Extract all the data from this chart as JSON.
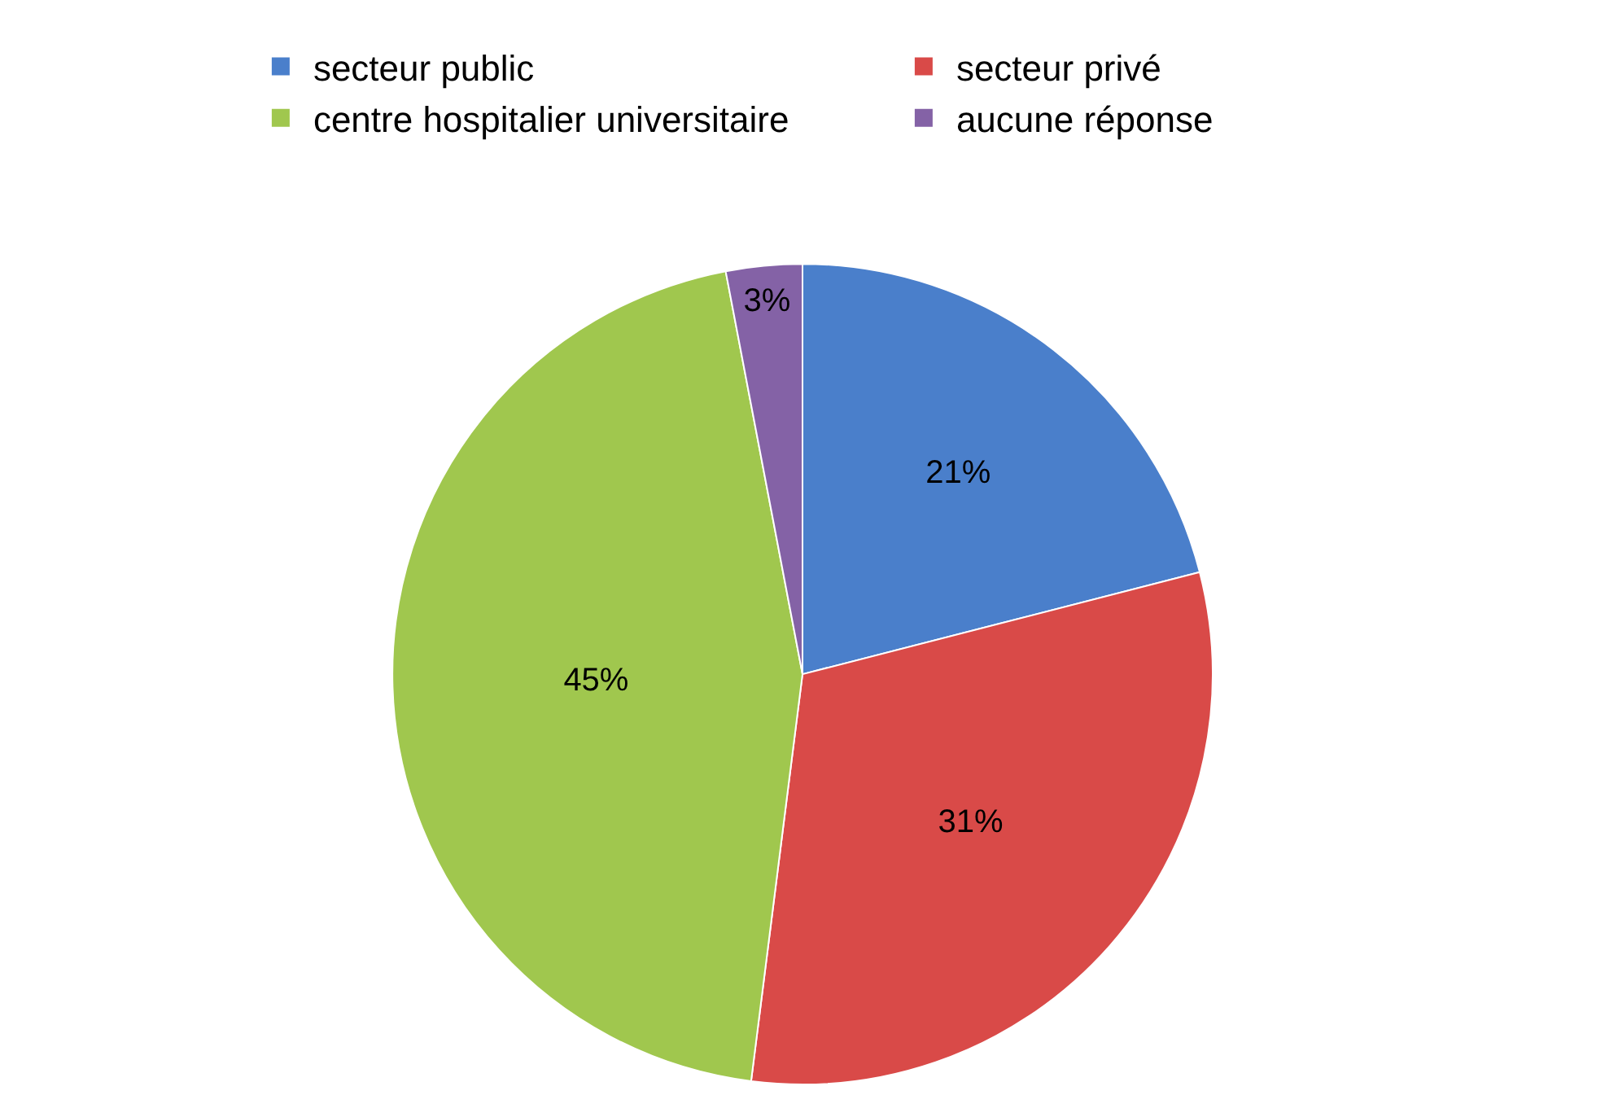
{
  "chart_data": {
    "type": "pie",
    "categories": [
      "secteur public",
      "secteur privé",
      "centre hospitalier universitaire",
      "aucune réponse"
    ],
    "values": [
      21,
      31,
      45,
      3
    ],
    "colors": [
      "#4a7fcb",
      "#d94a48",
      "#a0c74e",
      "#8462a6"
    ],
    "value_labels": [
      "21%",
      "31%",
      "45%",
      "3%"
    ],
    "legend": "top"
  }
}
